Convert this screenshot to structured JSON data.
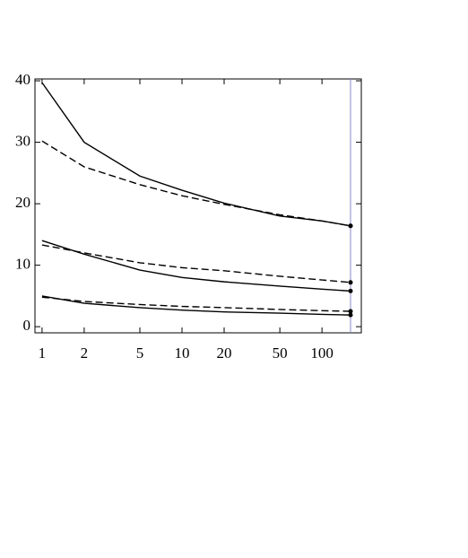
{
  "chart_data": {
    "type": "line",
    "x_scale": "log",
    "x": [
      1,
      2,
      5,
      10,
      20,
      50,
      100,
      160
    ],
    "xlim": [
      0.89,
      191
    ],
    "xticks": [
      1,
      2,
      5,
      10,
      20,
      50,
      100
    ],
    "ylim": [
      -1,
      40.3
    ],
    "yticks": [
      0,
      10,
      20,
      30,
      40
    ],
    "vline_x": 160,
    "vline_color": "#8888cc",
    "series": [
      {
        "color": "#000000",
        "style": "solid",
        "values": [
          39.7,
          30,
          24.5,
          22.2,
          20.1,
          18,
          17.2,
          16.4
        ]
      },
      {
        "color": "#000000",
        "style": "dashed",
        "values": [
          30.2,
          26,
          23.1,
          21.3,
          19.9,
          18.2,
          17.2,
          16.4
        ]
      },
      {
        "color": "#000000",
        "style": "solid",
        "values": [
          14,
          11.8,
          9.2,
          8,
          7.3,
          6.6,
          6.1,
          5.8
        ]
      },
      {
        "color": "#000000",
        "style": "dashed",
        "values": [
          13.3,
          12,
          10.4,
          9.6,
          9.1,
          8.2,
          7.6,
          7.2
        ]
      },
      {
        "color": "#000000",
        "style": "solid",
        "values": [
          5,
          3.8,
          3.1,
          2.7,
          2.4,
          2.2,
          2,
          1.9
        ]
      },
      {
        "color": "#000000",
        "style": "dashed",
        "values": [
          4.8,
          4.1,
          3.6,
          3.3,
          3.1,
          2.8,
          2.6,
          2.5
        ]
      }
    ]
  }
}
